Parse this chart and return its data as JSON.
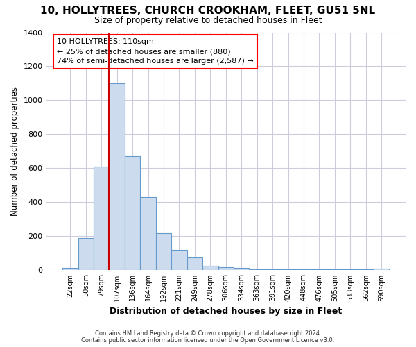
{
  "title1": "10, HOLLYTREES, CHURCH CROOKHAM, FLEET, GU51 5NL",
  "title2": "Size of property relative to detached houses in Fleet",
  "xlabel": "Distribution of detached houses by size in Fleet",
  "ylabel": "Number of detached properties",
  "bar_color": "#ccdcee",
  "bar_edge_color": "#6699cc",
  "background_color": "#ffffff",
  "grid_color": "#ccccdd",
  "categories": [
    "22sqm",
    "50sqm",
    "79sqm",
    "107sqm",
    "136sqm",
    "164sqm",
    "192sqm",
    "221sqm",
    "249sqm",
    "278sqm",
    "306sqm",
    "334sqm",
    "363sqm",
    "391sqm",
    "420sqm",
    "448sqm",
    "476sqm",
    "505sqm",
    "533sqm",
    "562sqm",
    "590sqm"
  ],
  "values": [
    15,
    190,
    610,
    1100,
    670,
    430,
    220,
    120,
    75,
    25,
    20,
    15,
    5,
    5,
    5,
    5,
    5,
    5,
    5,
    5,
    10
  ],
  "ylim": [
    0,
    1400
  ],
  "yticks": [
    0,
    200,
    400,
    600,
    800,
    1000,
    1200,
    1400
  ],
  "vline_x": 3.0,
  "vline_color": "#cc0000",
  "annotation_text": "10 HOLLYTREES: 110sqm\n← 25% of detached houses are smaller (880)\n74% of semi-detached houses are larger (2,587) →",
  "footer1": "Contains HM Land Registry data © Crown copyright and database right 2024.",
  "footer2": "Contains public sector information licensed under the Open Government Licence v3.0."
}
